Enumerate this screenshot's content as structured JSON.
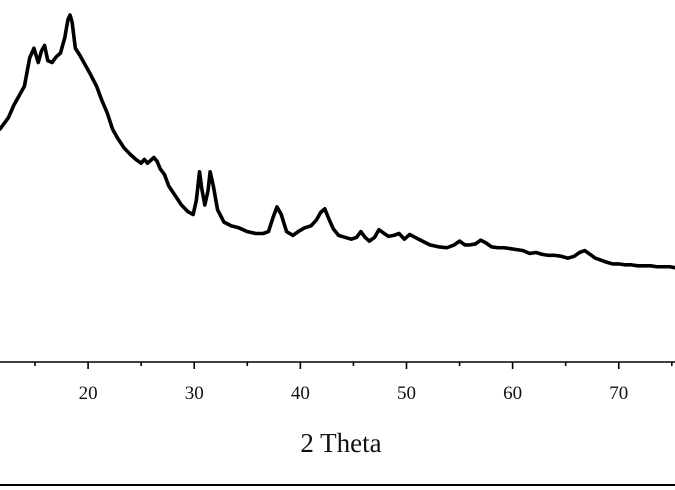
{
  "chart_data": {
    "type": "line",
    "title": "",
    "xlabel": "2 Theta",
    "ylabel": "",
    "xlim": [
      11.7,
      75.3
    ],
    "ylim": [
      0,
      300
    ],
    "x_ticks": [
      20,
      30,
      40,
      50,
      60,
      70
    ],
    "x_tick_labels": [
      "20",
      "30",
      "40",
      "50",
      "60",
      "70"
    ],
    "y_ticks_visible": false,
    "grid": false,
    "legend": "none",
    "line_color": "#000000",
    "series": [
      {
        "x": [
          11.7,
          12.5,
          13.0,
          13.5,
          14.0,
          14.5,
          14.9,
          15.3,
          15.6,
          15.9,
          16.2,
          16.6,
          17.0,
          17.4,
          17.8,
          18.1,
          18.3,
          18.5,
          18.8,
          19.2,
          19.7,
          20.2,
          20.8,
          21.3,
          21.8,
          22.3,
          22.8,
          23.4,
          24.0,
          24.5,
          25.0,
          25.3,
          25.6,
          25.9,
          26.2,
          26.5,
          26.8,
          27.2,
          27.6,
          28.2,
          28.8,
          29.4,
          29.9,
          30.2,
          30.5,
          30.7,
          31.0,
          31.3,
          31.5,
          31.8,
          32.2,
          32.8,
          33.5,
          34.2,
          35.0,
          35.8,
          36.5,
          37.0,
          37.4,
          37.8,
          38.2,
          38.7,
          39.3,
          39.8,
          40.4,
          41.0,
          41.5,
          41.9,
          42.3,
          42.7,
          43.1,
          43.6,
          44.2,
          44.8,
          45.3,
          45.7,
          46.1,
          46.5,
          47.0,
          47.4,
          47.9,
          48.3,
          48.8,
          49.3,
          49.8,
          50.3,
          50.8,
          51.5,
          52.2,
          53.0,
          53.8,
          54.5,
          55.0,
          55.5,
          56.0,
          56.5,
          57.0,
          57.5,
          58.0,
          58.6,
          59.2,
          59.8,
          60.4,
          61.0,
          61.6,
          62.2,
          62.8,
          63.4,
          64.0,
          64.6,
          65.2,
          65.8,
          66.3,
          66.8,
          67.3,
          67.8,
          68.3,
          68.8,
          69.4,
          70.0,
          70.6,
          71.2,
          71.8,
          72.4,
          73.0,
          73.6,
          74.2,
          74.8,
          75.3
        ],
        "y": [
          180,
          192,
          205,
          215,
          225,
          255,
          265,
          250,
          262,
          268,
          252,
          250,
          256,
          260,
          276,
          295,
          300,
          292,
          265,
          258,
          248,
          238,
          225,
          210,
          197,
          180,
          170,
          160,
          153,
          148,
          144,
          148,
          144,
          147,
          150,
          146,
          138,
          132,
          120,
          110,
          100,
          93,
          90,
          105,
          135,
          118,
          100,
          115,
          135,
          120,
          95,
          82,
          78,
          76,
          72,
          70,
          70,
          72,
          86,
          98,
          90,
          72,
          68,
          72,
          76,
          78,
          84,
          92,
          96,
          85,
          75,
          68,
          66,
          64,
          66,
          72,
          66,
          62,
          66,
          74,
          70,
          67,
          68,
          70,
          64,
          69,
          66,
          62,
          58,
          56,
          55,
          58,
          62,
          58,
          58,
          59,
          63,
          60,
          56,
          55,
          55,
          54,
          53,
          52,
          49,
          50,
          48,
          47,
          47,
          46,
          44,
          46,
          50,
          52,
          48,
          44,
          42,
          40,
          38,
          38,
          37,
          37,
          36,
          36,
          36,
          35,
          35,
          35,
          34
        ]
      }
    ]
  }
}
